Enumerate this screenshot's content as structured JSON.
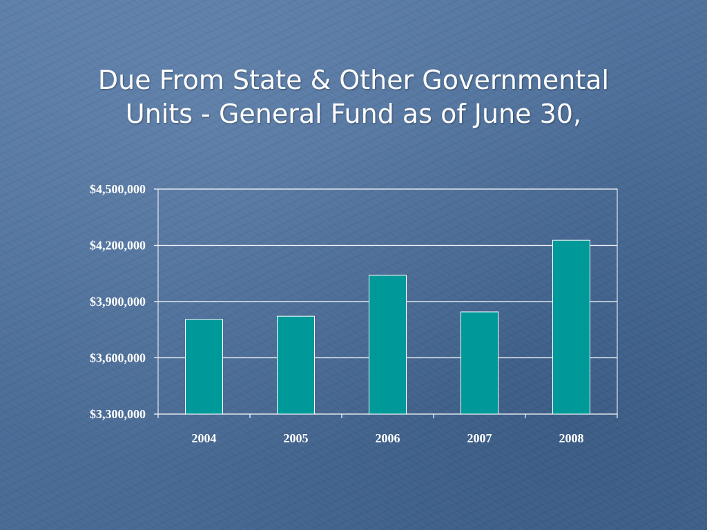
{
  "title_lines": [
    "Due From State & Other Governmental",
    "Units - General Fund as of June 30,"
  ],
  "chart_data": {
    "type": "bar",
    "title": "Due From State & Other Governmental Units - General Fund as of June 30,",
    "categories": [
      "2004",
      "2005",
      "2006",
      "2007",
      "2008"
    ],
    "values": [
      3805000,
      3822000,
      4040000,
      3845000,
      4227000
    ],
    "ylim": [
      3300000,
      4500000
    ],
    "yticks": [
      3300000,
      3600000,
      3900000,
      4200000,
      4500000
    ],
    "ytick_labels": [
      "$3,300,000",
      "$3,600,000",
      "$3,900,000",
      "$4,200,000",
      "$4,500,000"
    ],
    "xlabel": "",
    "ylabel": "",
    "grid": true,
    "legend": "none",
    "colors": {
      "bar": "#009999",
      "bar_border": "#ffffff",
      "grid": "#ffffff",
      "text": "#ffffff"
    }
  }
}
